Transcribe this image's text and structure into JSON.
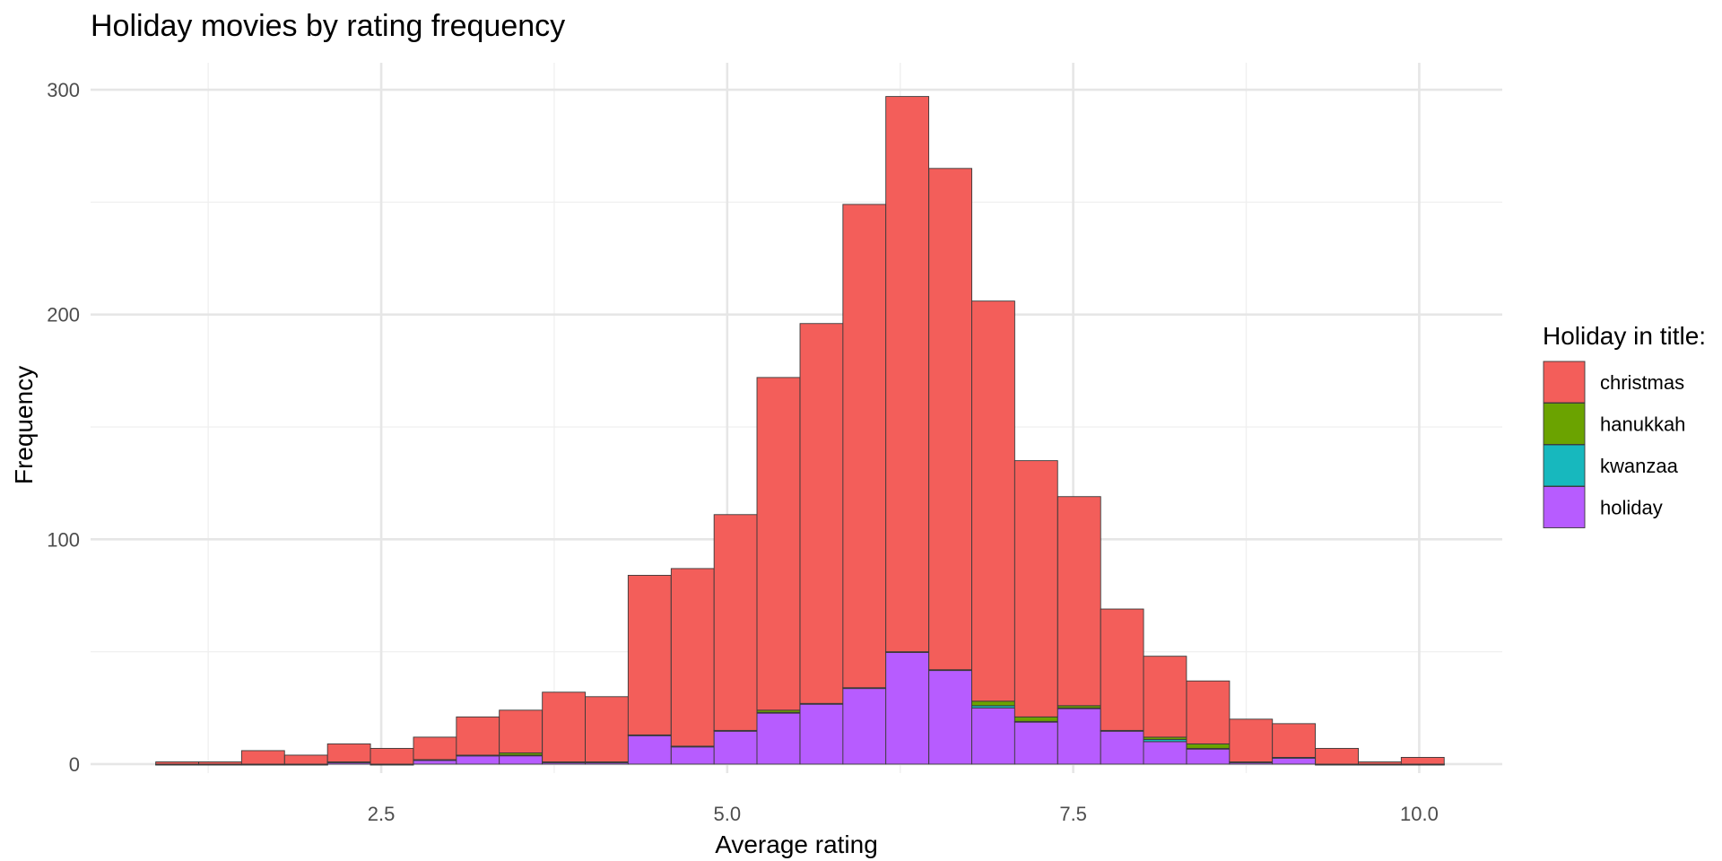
{
  "chart_data": {
    "type": "bar",
    "subtype": "stacked-histogram",
    "title": "Holiday movies by rating frequency",
    "xlabel": "Average rating",
    "ylabel": "Frequency",
    "xlim": [
      0.4,
      10.6
    ],
    "ylim": [
      -4,
      312
    ],
    "x_ticks": [
      2.5,
      5.0,
      7.5,
      10.0
    ],
    "x_tick_labels": [
      "2.5",
      "5.0",
      "7.5",
      "10.0"
    ],
    "y_ticks": [
      0,
      100,
      200,
      300
    ],
    "y_tick_labels": [
      "0",
      "100",
      "200",
      "300"
    ],
    "grid": true,
    "legend": {
      "title": "Holiday in title:",
      "placement": "right"
    },
    "bin_width": 0.3103,
    "bin_starts": [
      0.871,
      1.181,
      1.491,
      1.802,
      2.112,
      2.422,
      2.733,
      3.043,
      3.353,
      3.664,
      3.974,
      4.284,
      4.595,
      4.905,
      5.215,
      5.526,
      5.836,
      6.146,
      6.457,
      6.767,
      7.077,
      7.388,
      7.698,
      8.008,
      8.319,
      8.629,
      8.939,
      9.25,
      9.56,
      9.87
    ],
    "series": [
      {
        "name": "holiday",
        "color": "#B75CFF",
        "values": [
          0,
          0,
          0,
          0,
          1,
          0,
          2,
          4,
          4,
          1,
          1,
          13,
          8,
          15,
          23,
          27,
          34,
          50,
          42,
          25,
          19,
          25,
          15,
          10,
          7,
          1,
          3,
          0,
          0,
          0
        ]
      },
      {
        "name": "kwanzaa",
        "color": "#17B8BE",
        "values": [
          0,
          0,
          0,
          0,
          0,
          0,
          0,
          0,
          0,
          0,
          0,
          0,
          0,
          0,
          0,
          0,
          0,
          0,
          0,
          1,
          0,
          0,
          0,
          1,
          0,
          0,
          0,
          0,
          0,
          0
        ]
      },
      {
        "name": "hanukkah",
        "color": "#6BA300",
        "values": [
          0,
          0,
          0,
          0,
          0,
          0,
          0,
          0,
          1,
          0,
          0,
          0,
          0,
          0,
          1,
          0,
          0,
          0,
          0,
          2,
          2,
          1,
          0,
          1,
          2,
          0,
          0,
          0,
          0,
          0
        ]
      },
      {
        "name": "christmas",
        "color": "#F35E5A",
        "values": [
          1,
          1,
          6,
          4,
          8,
          7,
          10,
          17,
          19,
          31,
          29,
          71,
          79,
          96,
          148,
          169,
          215,
          247,
          223,
          178,
          114,
          93,
          54,
          36,
          28,
          19,
          15,
          7,
          1,
          3
        ]
      }
    ],
    "legend_order": [
      "christmas",
      "hanukkah",
      "kwanzaa",
      "holiday"
    ]
  }
}
